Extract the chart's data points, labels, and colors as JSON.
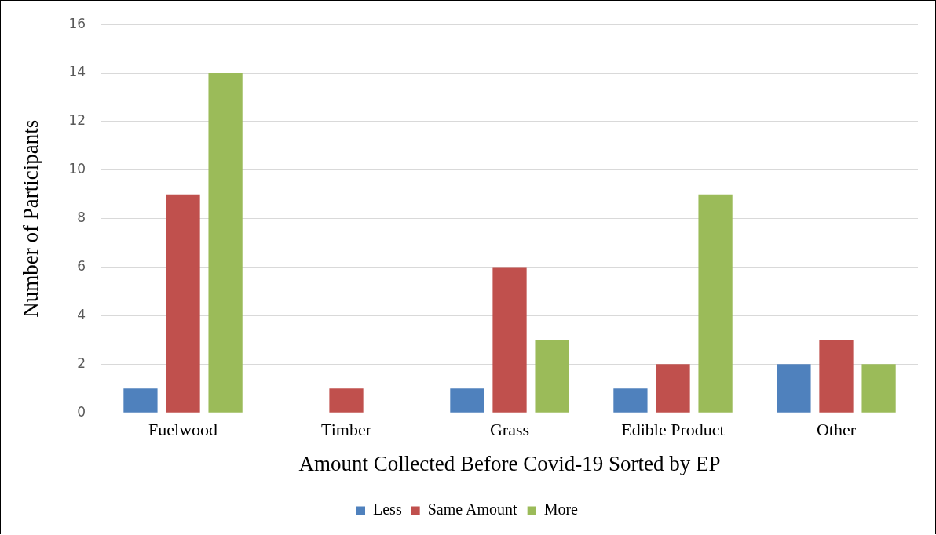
{
  "chart_data": {
    "type": "bar",
    "xlabel": "Amount Collected Before Covid-19 Sorted by EP",
    "ylabel": "Number of Participants",
    "categories": [
      "Fuelwood",
      "Timber",
      "Grass",
      "Edible Product",
      "Other"
    ],
    "series": [
      {
        "name": "Less",
        "color": "#4f81bd",
        "values": [
          1,
          0,
          1,
          1,
          2
        ]
      },
      {
        "name": "Same Amount",
        "color": "#c0504d",
        "values": [
          9,
          1,
          6,
          2,
          3
        ]
      },
      {
        "name": "More",
        "color": "#9bbb59",
        "values": [
          14,
          0,
          3,
          9,
          2
        ]
      }
    ],
    "ylim": [
      0,
      16
    ],
    "yticks": [
      0,
      2,
      4,
      6,
      8,
      10,
      12,
      14,
      16
    ],
    "grid": "y",
    "legend": "bottom"
  }
}
